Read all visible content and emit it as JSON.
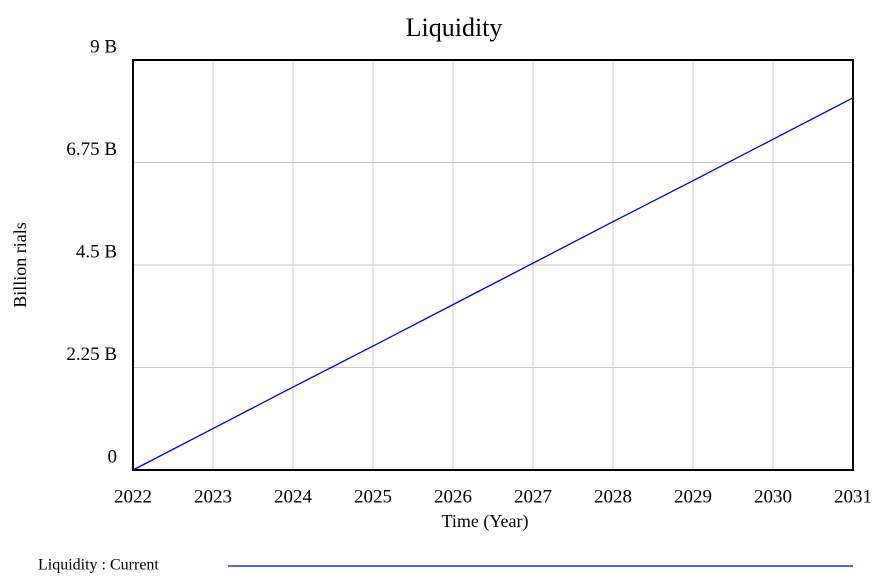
{
  "chart_data": {
    "type": "line",
    "title": "Liquidity",
    "x_label": "Time (Year)",
    "y_label": "Billion rials",
    "x": [
      2022,
      2023,
      2024,
      2025,
      2026,
      2027,
      2028,
      2029,
      2030,
      2031
    ],
    "series": [
      {
        "name": "Liquidity : Current",
        "color": "#0000cc",
        "values": [
          0,
          0.91,
          1.82,
          2.72,
          3.63,
          4.54,
          5.45,
          6.35,
          7.26,
          8.17
        ]
      }
    ],
    "xlim": [
      2022,
      2031
    ],
    "xticks": [
      2022,
      2023,
      2024,
      2025,
      2026,
      2027,
      2028,
      2029,
      2030,
      2031
    ],
    "ylim": [
      0,
      9
    ],
    "yticks": [
      0,
      {
        "value": 2.25,
        "label": "2.25 B"
      },
      {
        "value": 4.5,
        "label": "4.5 B"
      },
      {
        "value": 6.75,
        "label": "6.75 B"
      },
      {
        "value": 9,
        "label": "9 B"
      }
    ],
    "grid": true
  }
}
